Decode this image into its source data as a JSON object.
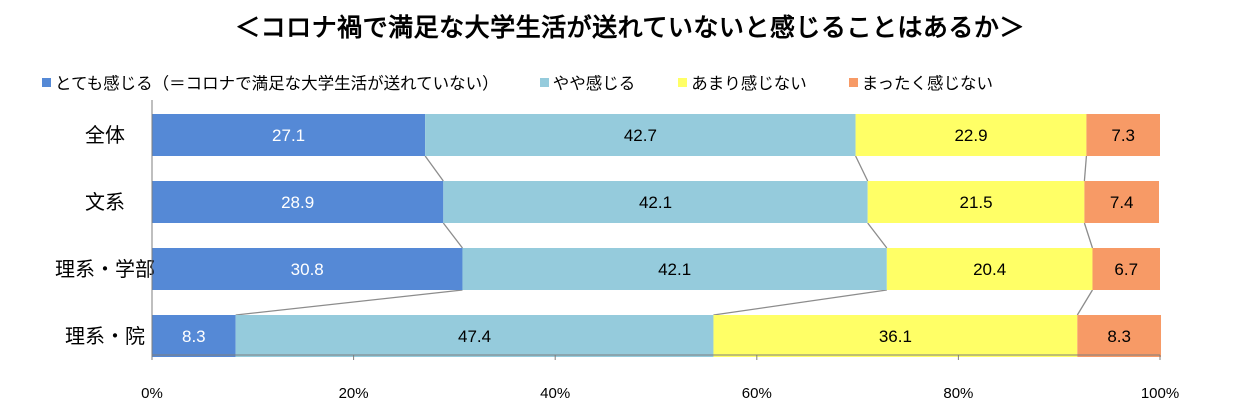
{
  "chart_data": {
    "type": "bar",
    "orientation": "horizontal",
    "stacked": true,
    "title": "＜コロナ禍で満足な大学生活が送れていないと感じることはあるか＞",
    "categories": [
      "全体",
      "文系",
      "理系・学部",
      "理系・院"
    ],
    "series": [
      {
        "name": "とても感じる（＝コロナで満足な大学生活が送れていない）",
        "color": "#5589D6",
        "label_color": "#ffffff",
        "values": [
          27.1,
          28.9,
          30.8,
          8.3
        ]
      },
      {
        "name": "やや感じる",
        "color": "#95CBDC",
        "label_color": "#000000",
        "values": [
          42.7,
          42.1,
          42.1,
          47.4
        ]
      },
      {
        "name": "あまり感じない",
        "color": "#FFFF66",
        "label_color": "#000000",
        "values": [
          22.9,
          21.5,
          20.4,
          36.1
        ]
      },
      {
        "name": "まったく感じない",
        "color": "#F79A66",
        "label_color": "#000000",
        "values": [
          7.3,
          7.4,
          6.7,
          8.3
        ]
      }
    ],
    "xlim": [
      0,
      100
    ],
    "x_ticks": [
      "0%",
      "20%",
      "40%",
      "60%",
      "80%",
      "100%"
    ],
    "legend_position": "top",
    "series_lines": true
  }
}
